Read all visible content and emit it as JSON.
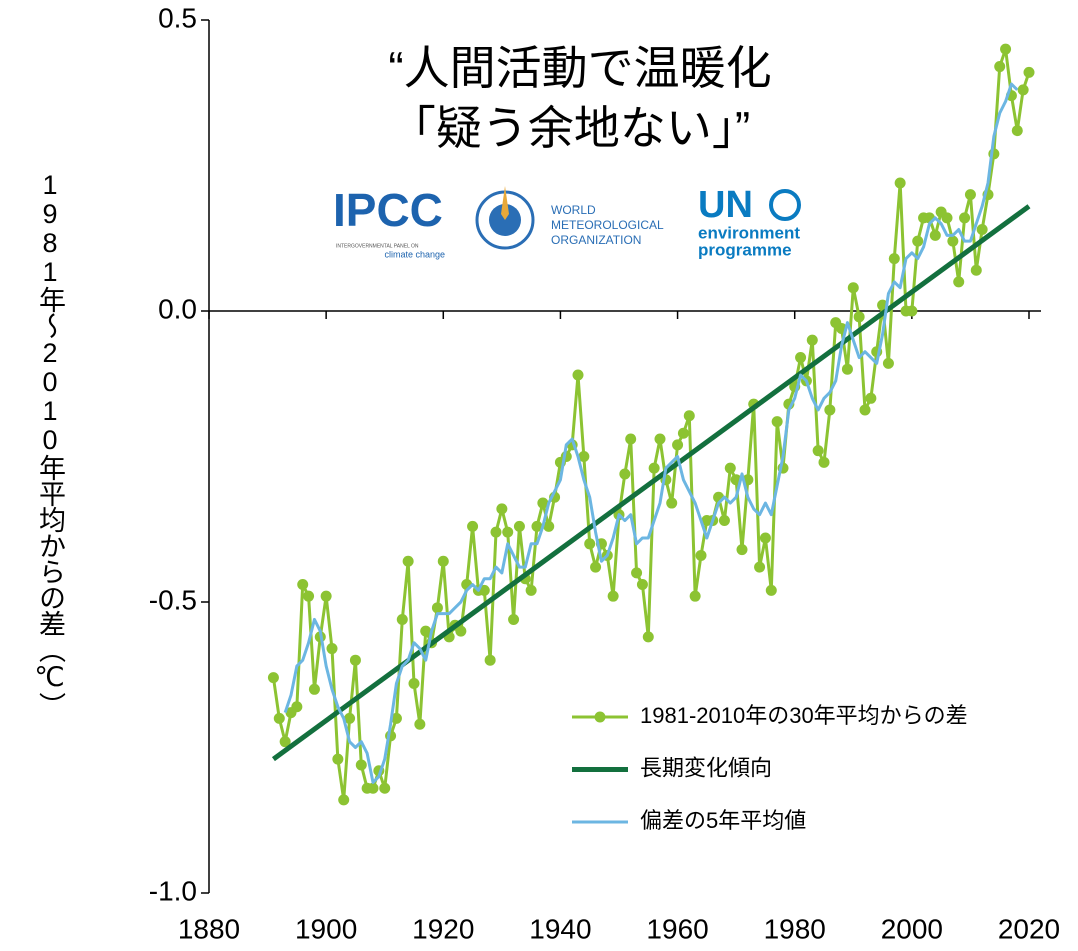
{
  "chart_data": {
    "type": "line",
    "title": [
      "“人間活動で温暖化",
      "「疑う余地ない」”"
    ],
    "ylabel": "1981年～2010年平均からの差（℃）",
    "xlim": [
      1880,
      2020
    ],
    "xticks": [
      1880,
      1900,
      1920,
      1940,
      1960,
      1980,
      2000,
      2020
    ],
    "ylim": [
      -1,
      0.5
    ],
    "yticks": [
      0.5,
      {
        "value": 0,
        "label": "0.0"
      },
      -0.5,
      {
        "value": -1,
        "label": "-1.0"
      }
    ],
    "legend": "lower right",
    "x": [
      1891,
      1892,
      1893,
      1894,
      1895,
      1896,
      1897,
      1898,
      1899,
      1900,
      1901,
      1902,
      1903,
      1904,
      1905,
      1906,
      1907,
      1908,
      1909,
      1910,
      1911,
      1912,
      1913,
      1914,
      1915,
      1916,
      1917,
      1918,
      1919,
      1920,
      1921,
      1922,
      1923,
      1924,
      1925,
      1926,
      1927,
      1928,
      1929,
      1930,
      1931,
      1932,
      1933,
      1934,
      1935,
      1936,
      1937,
      1938,
      1939,
      1940,
      1941,
      1942,
      1943,
      1944,
      1945,
      1946,
      1947,
      1948,
      1949,
      1950,
      1951,
      1952,
      1953,
      1954,
      1955,
      1956,
      1957,
      1958,
      1959,
      1960,
      1961,
      1962,
      1963,
      1964,
      1965,
      1966,
      1967,
      1968,
      1969,
      1970,
      1971,
      1972,
      1973,
      1974,
      1975,
      1976,
      1977,
      1978,
      1979,
      1980,
      1981,
      1982,
      1983,
      1984,
      1985,
      1986,
      1987,
      1988,
      1989,
      1990,
      1991,
      1992,
      1993,
      1994,
      1995,
      1996,
      1997,
      1998,
      1999,
      2000,
      2001,
      2002,
      2003,
      2004,
      2005,
      2006,
      2007,
      2008,
      2009,
      2010,
      2011,
      2012,
      2013,
      2014,
      2015,
      2016,
      2017,
      2018,
      2019,
      2020
    ],
    "series": [
      {
        "name": "1981-2010年の30年平均からの差",
        "color": "#8cc332",
        "marker": true,
        "values": [
          -0.63,
          -0.7,
          -0.74,
          -0.69,
          -0.68,
          -0.47,
          -0.49,
          -0.65,
          -0.56,
          -0.49,
          -0.58,
          -0.77,
          -0.84,
          -0.7,
          -0.6,
          -0.78,
          -0.82,
          -0.82,
          -0.79,
          -0.82,
          -0.73,
          -0.7,
          -0.53,
          -0.43,
          -0.64,
          -0.71,
          -0.55,
          -0.57,
          -0.51,
          -0.43,
          -0.56,
          -0.54,
          -0.55,
          -0.47,
          -0.37,
          -0.48,
          -0.48,
          -0.6,
          -0.38,
          -0.34,
          -0.38,
          -0.53,
          -0.37,
          -0.46,
          -0.48,
          -0.37,
          -0.33,
          -0.37,
          -0.32,
          -0.26,
          -0.25,
          -0.23,
          -0.11,
          -0.25,
          -0.4,
          -0.44,
          -0.4,
          -0.42,
          -0.49,
          -0.35,
          -0.28,
          -0.22,
          -0.45,
          -0.47,
          -0.56,
          -0.27,
          -0.22,
          -0.29,
          -0.33,
          -0.23,
          -0.21,
          -0.18,
          -0.49,
          -0.42,
          -0.36,
          -0.36,
          -0.32,
          -0.36,
          -0.27,
          -0.29,
          -0.41,
          -0.29,
          -0.16,
          -0.44,
          -0.39,
          -0.48,
          -0.19,
          -0.27,
          -0.16,
          -0.13,
          -0.08,
          -0.12,
          -0.05,
          -0.24,
          -0.26,
          -0.17,
          -0.02,
          -0.03,
          -0.1,
          0.04,
          -0.01,
          -0.17,
          -0.15,
          -0.07,
          0.01,
          -0.09,
          0.09,
          0.22,
          0.0,
          0.0,
          0.12,
          0.16,
          0.16,
          0.13,
          0.17,
          0.16,
          0.12,
          0.05,
          0.16,
          0.2,
          0.07,
          0.14,
          0.2,
          0.27,
          0.42,
          0.45,
          0.37,
          0.31,
          0.38,
          0.41
        ]
      },
      {
        "name": "長期変化傾向",
        "color": "#13703e",
        "x": [
          1891,
          2020
        ],
        "values": [
          -0.77,
          0.18
        ]
      },
      {
        "name": "偏差の5年平均値",
        "color": "#6cb6e2",
        "values": [
          null,
          null,
          -0.69,
          -0.66,
          -0.61,
          -0.6,
          -0.57,
          -0.53,
          -0.55,
          -0.61,
          -0.65,
          -0.68,
          -0.7,
          -0.74,
          -0.75,
          -0.74,
          -0.76,
          -0.81,
          -0.8,
          -0.77,
          -0.71,
          -0.64,
          -0.61,
          -0.6,
          -0.57,
          -0.58,
          -0.6,
          -0.55,
          -0.52,
          -0.52,
          -0.52,
          -0.51,
          -0.5,
          -0.48,
          -0.47,
          -0.48,
          -0.46,
          -0.46,
          -0.44,
          -0.45,
          -0.4,
          -0.42,
          -0.44,
          -0.44,
          -0.4,
          -0.4,
          -0.37,
          -0.33,
          -0.31,
          -0.29,
          -0.23,
          -0.22,
          -0.25,
          -0.29,
          -0.32,
          -0.38,
          -0.43,
          -0.42,
          -0.39,
          -0.35,
          -0.36,
          -0.35,
          -0.4,
          -0.39,
          -0.39,
          -0.36,
          -0.33,
          -0.27,
          -0.26,
          -0.25,
          -0.29,
          -0.31,
          -0.33,
          -0.36,
          -0.39,
          -0.36,
          -0.33,
          -0.32,
          -0.33,
          -0.32,
          -0.28,
          -0.32,
          -0.34,
          -0.35,
          -0.33,
          -0.35,
          -0.3,
          -0.25,
          -0.17,
          -0.15,
          -0.11,
          -0.12,
          -0.15,
          -0.17,
          -0.15,
          -0.14,
          -0.12,
          -0.06,
          -0.02,
          -0.05,
          -0.08,
          -0.07,
          -0.08,
          -0.09,
          -0.04,
          0.03,
          0.05,
          0.04,
          0.09,
          0.1,
          0.09,
          0.11,
          0.15,
          0.16,
          0.15,
          0.13,
          0.13,
          0.14,
          0.12,
          0.12,
          0.15,
          0.18,
          0.22,
          0.3,
          0.34,
          0.36,
          0.39,
          0.38,
          null,
          null
        ]
      }
    ]
  },
  "logos": {
    "ipcc": {
      "name": "IPCC",
      "line1": "INTERGOVERNMENTAL PANEL ON",
      "line2": "climate change"
    },
    "wmo": [
      "WORLD",
      "METEOROLOGICAL",
      "ORGANIZATION"
    ],
    "unep": {
      "name": "UN",
      "line1": "environment",
      "line2": "programme"
    }
  }
}
